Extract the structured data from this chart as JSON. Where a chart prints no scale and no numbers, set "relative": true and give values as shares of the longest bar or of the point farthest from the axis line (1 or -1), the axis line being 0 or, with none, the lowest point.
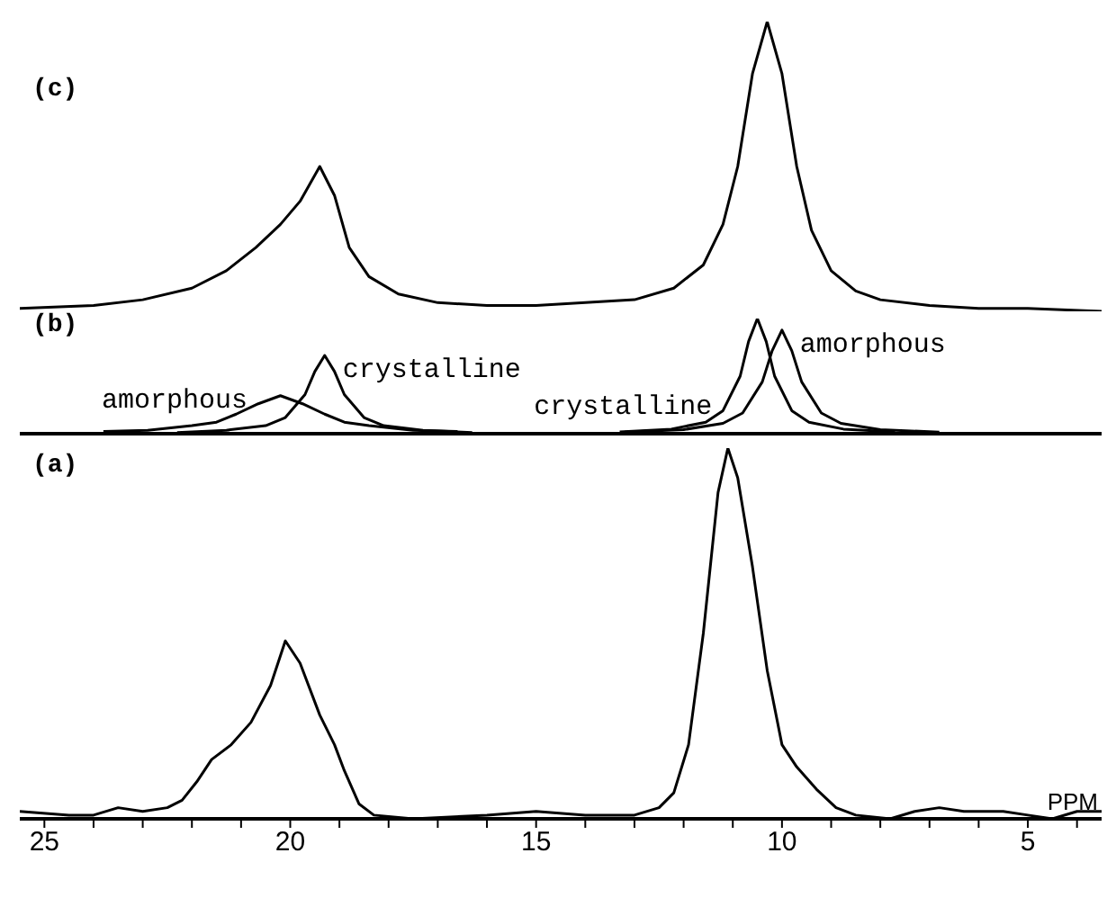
{
  "chart_data": [
    {
      "type": "line",
      "title": "(c)",
      "relative": true,
      "xlim": [
        25.5,
        3.5
      ],
      "tick_labels": false,
      "marker": "none",
      "line_style": "solid",
      "series": [
        {
          "color": "#000000",
          "x": [
            25.5,
            24,
            23,
            22,
            21.3,
            20.7,
            20.2,
            19.8,
            19.4,
            19.1,
            18.8,
            18.4,
            17.8,
            17,
            16,
            15,
            14,
            13,
            12.2,
            11.6,
            11.2,
            10.9,
            10.6,
            10.3,
            10,
            9.7,
            9.4,
            9,
            8.5,
            8,
            7,
            6,
            5,
            3.5
          ],
          "values": [
            0.01,
            0.02,
            0.04,
            0.08,
            0.14,
            0.22,
            0.3,
            0.38,
            0.5,
            0.4,
            0.22,
            0.12,
            0.06,
            0.03,
            0.02,
            0.02,
            0.03,
            0.04,
            0.08,
            0.16,
            0.3,
            0.5,
            0.82,
            1,
            0.82,
            0.5,
            0.28,
            0.14,
            0.07,
            0.04,
            0.02,
            0.01,
            0.01,
            0
          ]
        }
      ]
    },
    {
      "type": "line",
      "title": "(b)",
      "relative": true,
      "xlim": [
        25.5,
        3.5
      ],
      "tick_labels": false,
      "marker": "none",
      "line_style": "solid",
      "series": [
        {
          "name": "amorphous",
          "color": "#000000",
          "x": [
            23.8,
            22.9,
            22,
            21.5,
            21.1,
            20.65,
            20.2,
            19.75,
            19.3,
            18.9,
            18.4,
            17.5,
            16.6
          ],
          "values": [
            0.02,
            0.03,
            0.07,
            0.1,
            0.17,
            0.26,
            0.33,
            0.26,
            0.17,
            0.1,
            0.07,
            0.03,
            0.02
          ]
        },
        {
          "name": "crystalline",
          "color": "#000000",
          "x": [
            22.3,
            21.3,
            20.5,
            20.1,
            19.7,
            19.5,
            19.3,
            19.1,
            18.9,
            18.5,
            18.1,
            17.3,
            16.3
          ],
          "values": [
            0.01,
            0.03,
            0.07,
            0.14,
            0.34,
            0.54,
            0.68,
            0.54,
            0.34,
            0.14,
            0.07,
            0.03,
            0.01
          ]
        },
        {
          "name": "crystalline",
          "color": "#000000",
          "x": [
            13.3,
            12.25,
            11.55,
            11.2,
            10.85,
            10.68,
            10.5,
            10.32,
            10.15,
            9.8,
            9.45,
            8.75,
            7.7
          ],
          "values": [
            0.015,
            0.04,
            0.1,
            0.2,
            0.5,
            0.8,
            1,
            0.8,
            0.5,
            0.2,
            0.1,
            0.04,
            0.015
          ]
        },
        {
          "name": "amorphous",
          "color": "#000000",
          "x": [
            13.2,
            12,
            11.2,
            10.8,
            10.4,
            10.2,
            10,
            9.8,
            9.6,
            9.2,
            8.8,
            8,
            6.8
          ],
          "values": [
            0.014,
            0.035,
            0.09,
            0.18,
            0.45,
            0.72,
            0.9,
            0.72,
            0.45,
            0.18,
            0.09,
            0.035,
            0.014
          ]
        }
      ]
    },
    {
      "type": "line",
      "title": "(a)",
      "relative": true,
      "xlabel": "PPM",
      "xlim": [
        25.5,
        3.5
      ],
      "tick_labels": "x",
      "marker": "none",
      "line_style": "solid",
      "xticks": [
        25,
        {
          "value": 24,
          "label": null
        },
        {
          "value": 23,
          "label": null
        },
        {
          "value": 22,
          "label": null
        },
        {
          "value": 21,
          "label": null
        },
        20,
        {
          "value": 19,
          "label": null
        },
        {
          "value": 18,
          "label": null
        },
        {
          "value": 17,
          "label": null
        },
        {
          "value": 16,
          "label": null
        },
        15,
        {
          "value": 14,
          "label": null
        },
        {
          "value": 13,
          "label": null
        },
        {
          "value": 12,
          "label": null
        },
        {
          "value": 11,
          "label": null
        },
        10,
        {
          "value": 9,
          "label": null
        },
        {
          "value": 8,
          "label": null
        },
        {
          "value": 7,
          "label": null
        },
        {
          "value": 6,
          "label": null
        },
        5,
        {
          "value": 4,
          "label": null
        }
      ],
      "series": [
        {
          "color": "#000000",
          "x": [
            25.5,
            24.5,
            24,
            23.5,
            23,
            22.5,
            22.2,
            21.9,
            21.6,
            21.2,
            20.8,
            20.4,
            20.1,
            19.8,
            19.4,
            19.1,
            18.9,
            18.6,
            18.3,
            17.5,
            16,
            15,
            14,
            13,
            12.5,
            12.2,
            11.9,
            11.6,
            11.3,
            11.1,
            10.9,
            10.6,
            10.3,
            10,
            9.7,
            9.3,
            8.9,
            8.5,
            7.8,
            7.3,
            6.8,
            6.3,
            5.8,
            5.5,
            5,
            4.5,
            4,
            3.5
          ],
          "values": [
            0.02,
            0.01,
            0.01,
            0.03,
            0.02,
            0.03,
            0.05,
            0.1,
            0.16,
            0.2,
            0.26,
            0.36,
            0.48,
            0.42,
            0.28,
            0.2,
            0.13,
            0.04,
            0.01,
            0,
            0.01,
            0.02,
            0.01,
            0.01,
            0.03,
            0.07,
            0.2,
            0.5,
            0.88,
            1,
            0.92,
            0.68,
            0.4,
            0.2,
            0.14,
            0.08,
            0.03,
            0.01,
            0,
            0.02,
            0.03,
            0.02,
            0.02,
            0.02,
            0.01,
            0,
            0.02,
            0.02
          ]
        }
      ]
    }
  ]
}
